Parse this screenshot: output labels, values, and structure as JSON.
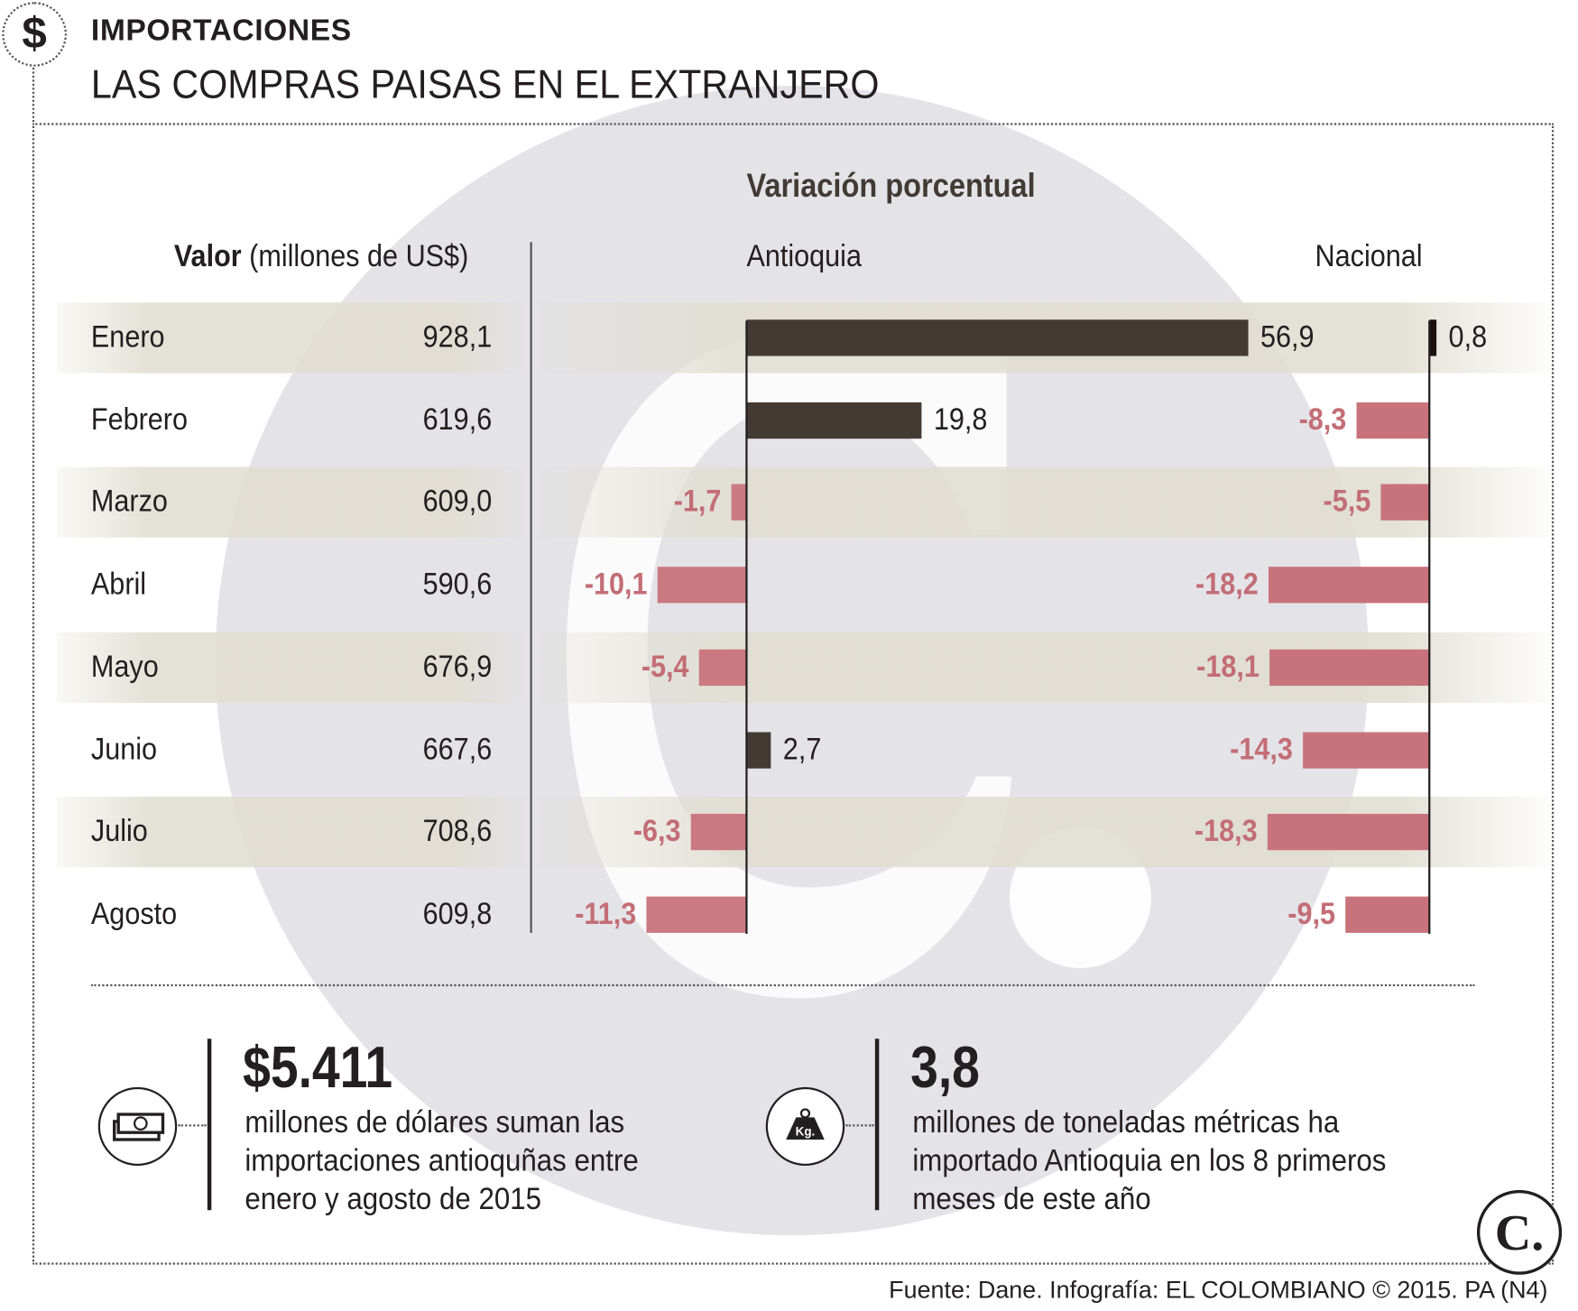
{
  "header": {
    "kicker": "IMPORTACIONES",
    "title": "LAS COMPRAS PAISAS EN EL EXTRANJERO",
    "icon": "dollar-icon"
  },
  "chart_data": {
    "type": "bar",
    "title": "Variación porcentual",
    "value_header_bold": "Valor",
    "value_header_unit": "(millones de US$)",
    "categories": [
      "Enero",
      "Febrero",
      "Marzo",
      "Abril",
      "Mayo",
      "Junio",
      "Julio",
      "Agosto"
    ],
    "values_musd": [
      "928,1",
      "619,6",
      "609,0",
      "590,6",
      "676,9",
      "667,6",
      "708,6",
      "609,8"
    ],
    "series": [
      {
        "name": "Antioquia",
        "values": [
          56.9,
          19.8,
          -1.7,
          -10.1,
          -5.4,
          2.7,
          -6.3,
          -11.3
        ],
        "labels": [
          "56,9",
          "19,8",
          "-1,7",
          "-10,1",
          "-5,4",
          "2,7",
          "-6,3",
          "-11,3"
        ]
      },
      {
        "name": "Nacional",
        "values": [
          0.8,
          -8.3,
          -5.5,
          -18.2,
          -18.1,
          -14.3,
          -18.3,
          -9.5
        ],
        "labels": [
          "0,8",
          "-8,3",
          "-5,5",
          "-18,2",
          "-18,1",
          "-14,3",
          "-18,3",
          "-9,5"
        ]
      }
    ],
    "colors": {
      "positive": "#433a34",
      "negative": "#c8737b",
      "negative_text": "#c36d75"
    }
  },
  "summary": [
    {
      "value": "$5.411",
      "lines": [
        "millones de dólares suman las",
        "importaciones antioquñas entre",
        "enero y agosto de 2015"
      ],
      "icon": "money-icon"
    },
    {
      "value": "3,8",
      "lines": [
        "millones de toneladas métricas ha",
        "importado Antioquia en los 8 primeros",
        "meses de este año"
      ],
      "icon": "weight-kg-icon",
      "icon_text": "Kg."
    }
  ],
  "logo": "C.",
  "source": "Fuente: Dane. Infografía: EL COLOMBIANO © 2015. PA (N4)"
}
